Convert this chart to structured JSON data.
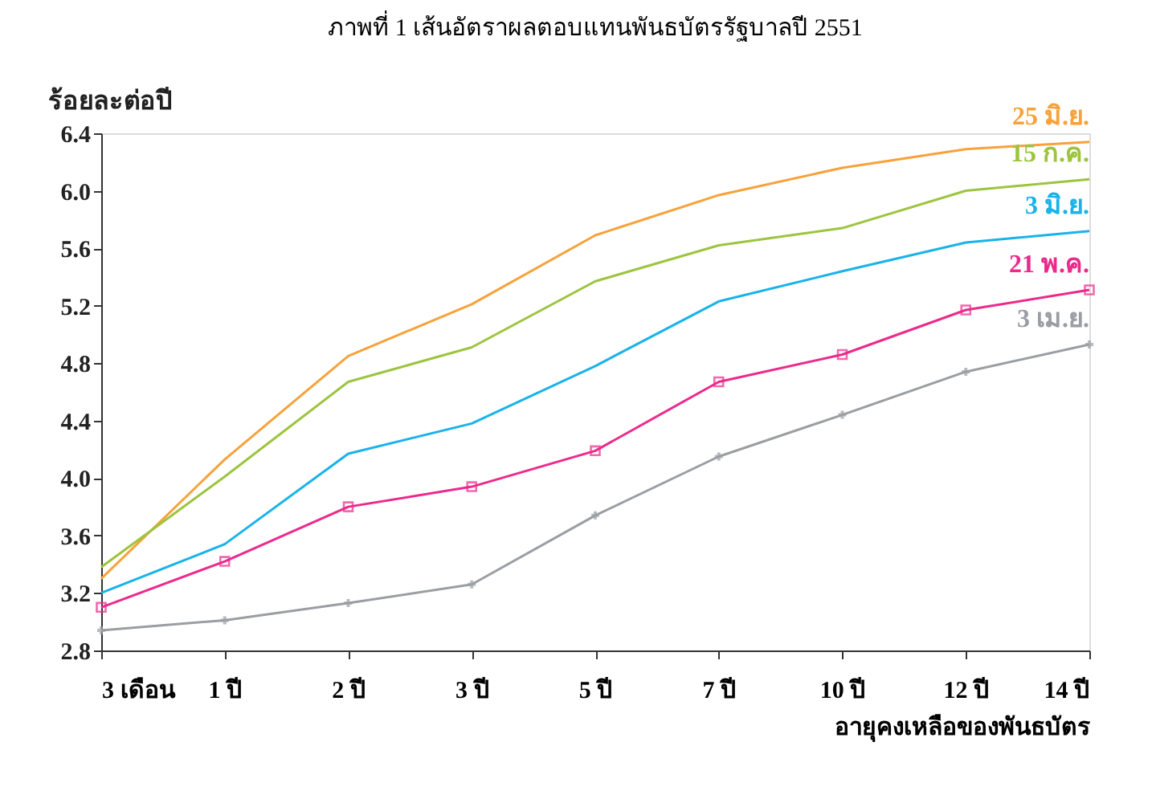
{
  "chart_data": {
    "type": "line",
    "title": "ภาพที่ 1  เส้นอัตราผลตอบแทนพันธบัตรรัฐบาลปี 2551",
    "ylabel": "ร้อยละต่อปี",
    "xlabel": "อายุคงเหลือของพันธบัตร",
    "categories": [
      "3 เดือน",
      "1 ปี",
      "2 ปี",
      "3 ปี",
      "5 ปี",
      "7 ปี",
      "10 ปี",
      "12 ปี",
      "14 ปี"
    ],
    "ylim": [
      2.8,
      6.4
    ],
    "yticks": [
      2.8,
      3.2,
      3.6,
      {
        "value": 4,
        "label": "4.0"
      },
      4.4,
      4.8,
      5.2,
      5.6,
      {
        "value": 6,
        "label": "6.0"
      },
      6.4
    ],
    "grid": false,
    "legend": false,
    "series": [
      {
        "name": "25 มิ.ย.",
        "color": "#f7a23b",
        "marker": "none",
        "values": [
          3.3,
          4.13,
          4.85,
          5.21,
          5.69,
          5.97,
          6.16,
          6.29,
          6.34
        ]
      },
      {
        "name": "15 ก.ค.",
        "color": "#9dc43f",
        "marker": "none",
        "values": [
          3.38,
          4.01,
          4.67,
          4.91,
          5.37,
          5.62,
          5.74,
          6.0,
          6.08
        ]
      },
      {
        "name": "3 มิ.ย.",
        "color": "#19b3ea",
        "marker": "none",
        "values": [
          3.2,
          3.54,
          4.17,
          4.38,
          4.78,
          5.23,
          5.44,
          5.64,
          5.72
        ]
      },
      {
        "name": "21 พ.ค.",
        "color": "#ec2a8c",
        "marker": "square",
        "values": [
          3.1,
          3.42,
          3.8,
          3.94,
          4.19,
          4.67,
          4.86,
          5.17,
          5.31
        ]
      },
      {
        "name": "3 เม.ย.",
        "color": "#9a9ea3",
        "marker": "cross",
        "values": [
          2.94,
          3.01,
          3.13,
          3.26,
          3.74,
          4.15,
          4.44,
          4.74,
          4.93
        ]
      }
    ]
  }
}
